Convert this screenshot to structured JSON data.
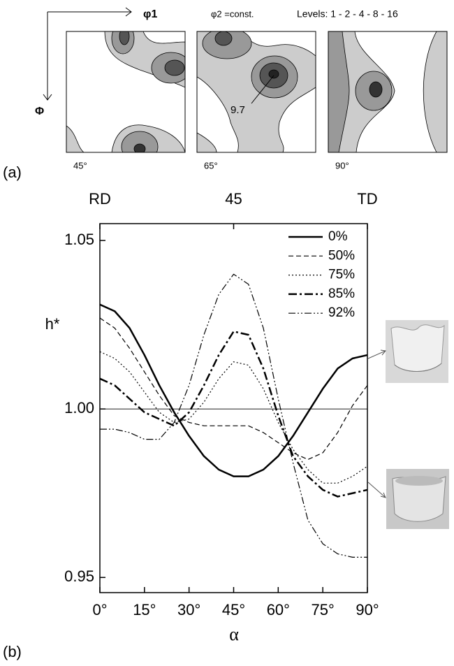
{
  "panel_a": {
    "phi1": "φ1",
    "phi2": "φ2 =const.",
    "levels": "Levels: 1 - 2 - 4 - 8 - 16",
    "Phi": "Φ",
    "peak": "9.7",
    "sections": [
      "45°",
      "65°",
      "90°"
    ],
    "label": "(a)"
  },
  "chart_data": {
    "type": "line",
    "label": "(b)",
    "xlabel": "α",
    "ylabel": "h*",
    "x": [
      0,
      5,
      10,
      15,
      20,
      25,
      30,
      35,
      40,
      45,
      50,
      55,
      60,
      65,
      70,
      75,
      80,
      85,
      90
    ],
    "series": [
      {
        "name": "0%",
        "color": "#000000",
        "dash": "solid",
        "linewidth": 2.5,
        "values": [
          1.031,
          1.029,
          1.024,
          1.016,
          1.007,
          0.999,
          0.992,
          0.986,
          0.982,
          0.98,
          0.98,
          0.982,
          0.986,
          0.992,
          0.999,
          1.006,
          1.012,
          1.015,
          1.016
        ]
      },
      {
        "name": "50%",
        "color": "#000000",
        "dash": "dashed",
        "linewidth": 1.2,
        "values": [
          1.027,
          1.024,
          1.018,
          1.011,
          1.004,
          0.998,
          0.996,
          0.995,
          0.995,
          0.995,
          0.995,
          0.993,
          0.99,
          0.987,
          0.985,
          0.987,
          0.993,
          1.001,
          1.007
        ]
      },
      {
        "name": "75%",
        "color": "#000000",
        "dash": "dotted",
        "linewidth": 1.2,
        "values": [
          1.017,
          1.015,
          1.011,
          1.005,
          0.999,
          0.996,
          0.997,
          1.002,
          1.009,
          1.014,
          1.013,
          1.006,
          0.996,
          0.988,
          0.982,
          0.978,
          0.978,
          0.98,
          0.983
        ]
      },
      {
        "name": "85%",
        "color": "#000000",
        "dash": "dashdot",
        "linewidth": 2.5,
        "values": [
          1.009,
          1.007,
          1.003,
          0.999,
          0.997,
          0.995,
          0.999,
          1.007,
          1.016,
          1.023,
          1.022,
          1.012,
          0.998,
          0.986,
          0.98,
          0.976,
          0.974,
          0.975,
          0.976
        ]
      },
      {
        "name": "92%",
        "color": "#000000",
        "dash": "dashdotdot",
        "linewidth": 1.2,
        "values": [
          0.994,
          0.994,
          0.993,
          0.991,
          0.991,
          0.996,
          1.007,
          1.022,
          1.034,
          1.04,
          1.037,
          1.024,
          1.003,
          0.984,
          0.967,
          0.96,
          0.957,
          0.956,
          0.956
        ]
      }
    ],
    "xlim": [
      0,
      90
    ],
    "ylim": [
      0.9455,
      1.055
    ],
    "xticks": [
      {
        "value": 0,
        "label": "0°"
      },
      {
        "value": 15,
        "label": "15°"
      },
      {
        "value": 30,
        "label": "30°"
      },
      {
        "value": 45,
        "label": "45°"
      },
      {
        "value": 60,
        "label": "60°"
      },
      {
        "value": 75,
        "label": "75°"
      },
      {
        "value": 90,
        "label": "90°"
      }
    ],
    "x2ticks": [
      {
        "value": 0,
        "label": "RD"
      },
      45,
      {
        "value": 90,
        "label": "TD"
      }
    ],
    "yticks": [
      0.95,
      {
        "value": 1,
        "label": "1.00"
      },
      1.05
    ],
    "reference_line": 1,
    "legend": "upper right"
  }
}
